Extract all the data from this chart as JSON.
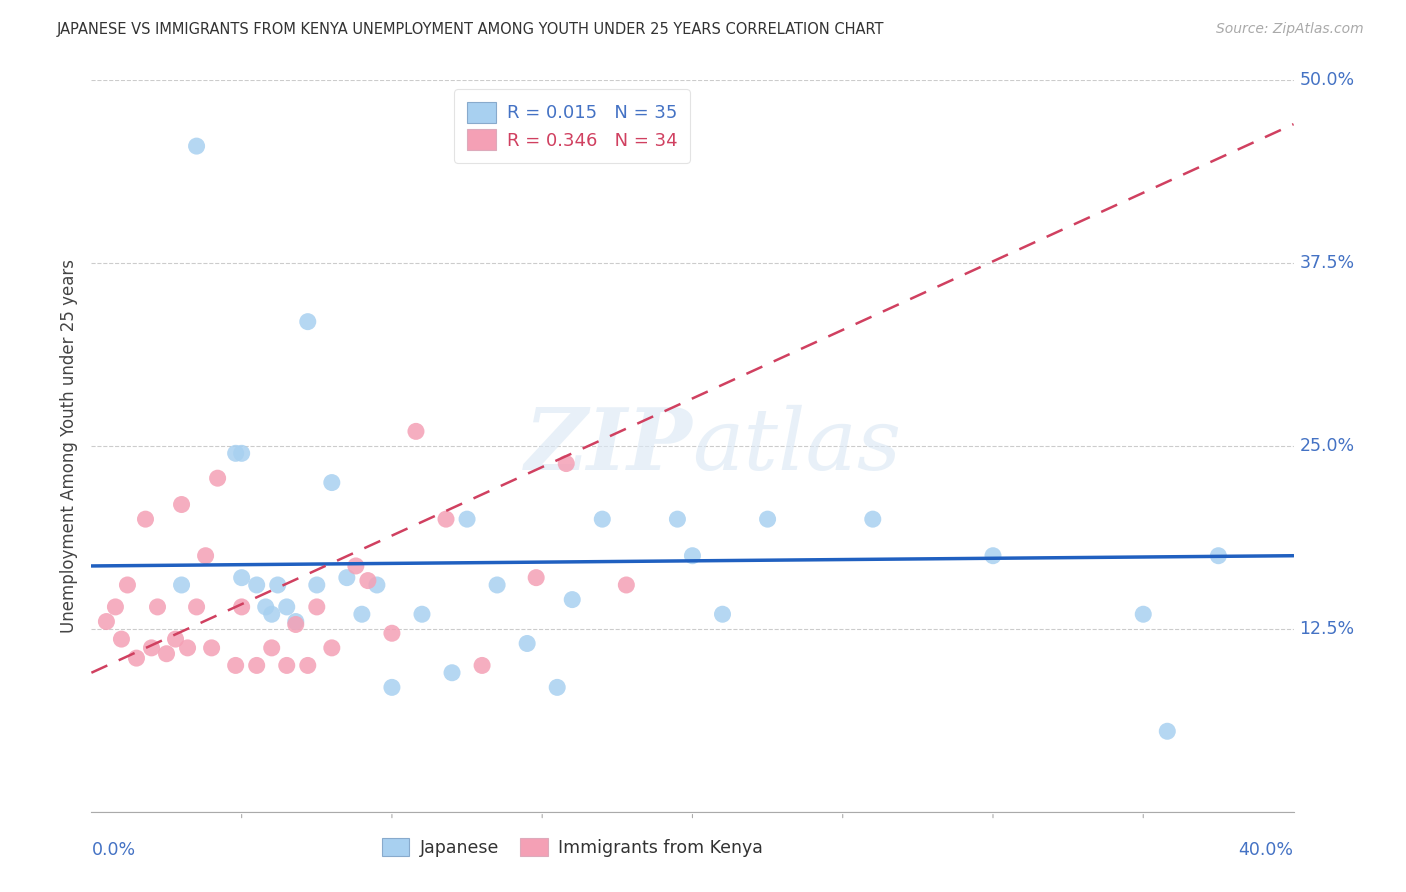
{
  "title": "JAPANESE VS IMMIGRANTS FROM KENYA UNEMPLOYMENT AMONG YOUTH UNDER 25 YEARS CORRELATION CHART",
  "source": "Source: ZipAtlas.com",
  "ylabel": "Unemployment Among Youth under 25 years",
  "xlim": [
    0.0,
    0.4
  ],
  "ylim": [
    0.0,
    0.5
  ],
  "yticks": [
    0.0,
    0.125,
    0.25,
    0.375,
    0.5
  ],
  "ytick_labels": [
    "",
    "12.5%",
    "25.0%",
    "37.5%",
    "50.0%"
  ],
  "r1": "0.015",
  "n1": "35",
  "r2": "0.346",
  "n2": "34",
  "watermark": "ZIPatlas",
  "series1_color": "#A8D0F0",
  "series2_color": "#F4A0B5",
  "line1_color": "#2060C0",
  "line2_color": "#D04060",
  "background_color": "#FFFFFF",
  "line1_x": [
    0.0,
    0.4
  ],
  "line1_y": [
    0.168,
    0.175
  ],
  "line2_x": [
    0.0,
    0.4
  ],
  "line2_y": [
    0.095,
    0.47
  ],
  "japanese_x": [
    0.03,
    0.035,
    0.048,
    0.05,
    0.05,
    0.055,
    0.058,
    0.06,
    0.062,
    0.065,
    0.068,
    0.072,
    0.075,
    0.08,
    0.085,
    0.09,
    0.095,
    0.1,
    0.11,
    0.12,
    0.125,
    0.135,
    0.145,
    0.155,
    0.16,
    0.17,
    0.195,
    0.2,
    0.21,
    0.225,
    0.26,
    0.3,
    0.35,
    0.358,
    0.375
  ],
  "japanese_y": [
    0.155,
    0.455,
    0.245,
    0.245,
    0.16,
    0.155,
    0.14,
    0.135,
    0.155,
    0.14,
    0.13,
    0.335,
    0.155,
    0.225,
    0.16,
    0.135,
    0.155,
    0.085,
    0.135,
    0.095,
    0.2,
    0.155,
    0.115,
    0.085,
    0.145,
    0.2,
    0.2,
    0.175,
    0.135,
    0.2,
    0.2,
    0.175,
    0.135,
    0.055,
    0.175
  ],
  "kenya_x": [
    0.005,
    0.008,
    0.01,
    0.012,
    0.015,
    0.018,
    0.02,
    0.022,
    0.025,
    0.028,
    0.03,
    0.032,
    0.035,
    0.038,
    0.04,
    0.042,
    0.048,
    0.05,
    0.055,
    0.06,
    0.065,
    0.068,
    0.072,
    0.075,
    0.08,
    0.088,
    0.092,
    0.1,
    0.108,
    0.118,
    0.13,
    0.148,
    0.158,
    0.178
  ],
  "kenya_y": [
    0.13,
    0.14,
    0.118,
    0.155,
    0.105,
    0.2,
    0.112,
    0.14,
    0.108,
    0.118,
    0.21,
    0.112,
    0.14,
    0.175,
    0.112,
    0.228,
    0.1,
    0.14,
    0.1,
    0.112,
    0.1,
    0.128,
    0.1,
    0.14,
    0.112,
    0.168,
    0.158,
    0.122,
    0.26,
    0.2,
    0.1,
    0.16,
    0.238,
    0.155
  ]
}
